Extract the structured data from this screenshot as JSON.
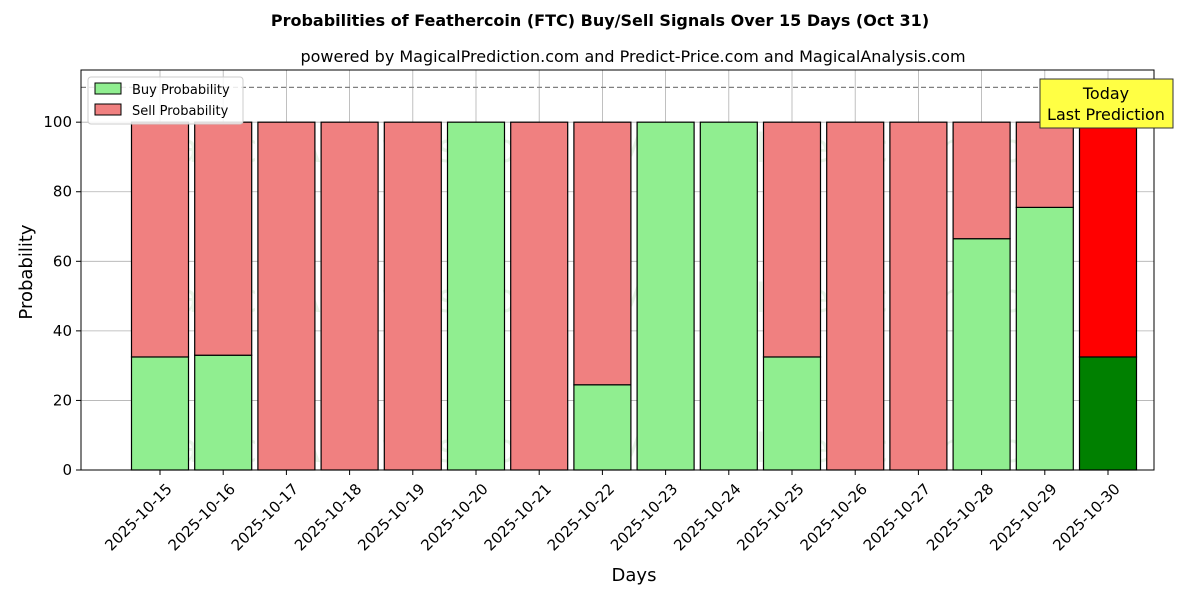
{
  "chart_data": {
    "type": "bar",
    "stacked": true,
    "title": "Probabilities of Feathercoin (FTC) Buy/Sell Signals Over 15 Days (Oct 31)",
    "subtitle": "powered by MagicalPrediction.com and Predict-Price.com and MagicalAnalysis.com",
    "xlabel": "Days",
    "ylabel": "Probability",
    "ylim": [
      0,
      115
    ],
    "yticks": [
      0,
      20,
      40,
      60,
      80,
      100
    ],
    "grid": true,
    "legend_position": "top-left",
    "categories": [
      "2025-10-15",
      "2025-10-16",
      "2025-10-17",
      "2025-10-18",
      "2025-10-19",
      "2025-10-20",
      "2025-10-21",
      "2025-10-22",
      "2025-10-23",
      "2025-10-24",
      "2025-10-25",
      "2025-10-26",
      "2025-10-27",
      "2025-10-28",
      "2025-10-29",
      "2025-10-30"
    ],
    "series": [
      {
        "name": "Buy Probability",
        "color": "#90ee90",
        "highlight_color": "#008000",
        "values": [
          32.5,
          33,
          0,
          0,
          0,
          100,
          0,
          24.5,
          100,
          100,
          32.5,
          0,
          0,
          66.5,
          75.5,
          32.5
        ]
      },
      {
        "name": "Sell Probability",
        "color": "#f08080",
        "highlight_color": "#ff0000",
        "values": [
          67.5,
          67,
          100,
          100,
          100,
          0,
          100,
          75.5,
          0,
          0,
          67.5,
          100,
          100,
          33.5,
          24.5,
          67.5
        ]
      }
    ],
    "highlight_index": 15,
    "reference_line": {
      "y": 110,
      "style": "dashed",
      "color": "#808080"
    },
    "annotation": {
      "lines": [
        "Today",
        "Last Prediction"
      ],
      "background": "#ffff44"
    },
    "watermarks": [
      "MagicalAnalysis.com",
      "MagicalPrediction.com"
    ]
  }
}
